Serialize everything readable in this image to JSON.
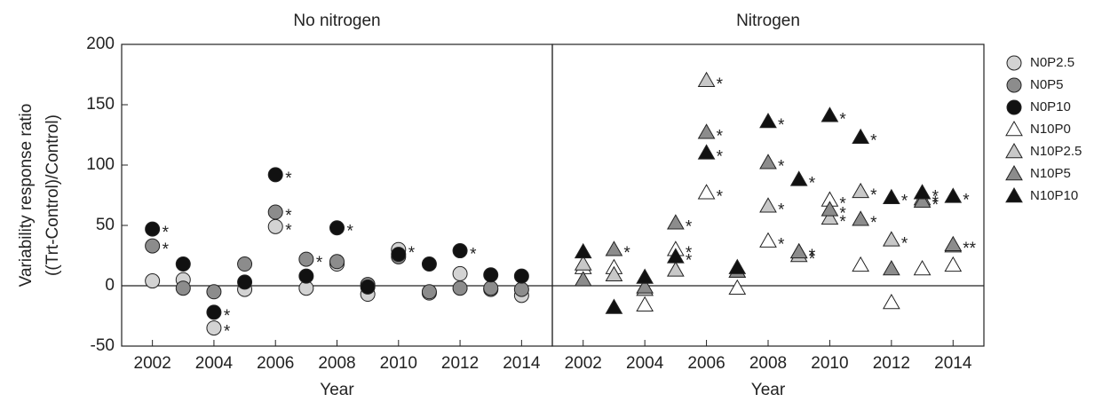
{
  "chart_data": [
    {
      "type": "scatter",
      "title": "No nitrogen",
      "xlabel": "Year",
      "ylabel": [
        "Variability response ratio",
        "((Trt-Control)/Control)"
      ],
      "x": [
        2002,
        2003,
        2004,
        2005,
        2006,
        2007,
        2008,
        2009,
        2010,
        2011,
        2012,
        2013,
        2014
      ],
      "xlim": [
        2001,
        2015
      ],
      "xticks": [
        2002,
        2004,
        2006,
        2008,
        2010,
        2012,
        2014
      ],
      "ylim": [
        -50,
        200
      ],
      "yticks": [
        -50,
        0,
        50,
        100,
        150,
        200
      ],
      "hline": 0,
      "series": [
        {
          "name": "N0P2.5",
          "marker": "circle",
          "color": "#d3d3d3",
          "values": [
            4,
            5,
            -35,
            -3,
            49,
            -2,
            18,
            -7,
            30,
            -6,
            10,
            -3,
            -8
          ],
          "labels": [
            null,
            null,
            "*",
            null,
            "*",
            null,
            null,
            null,
            "*",
            null,
            null,
            null,
            null
          ]
        },
        {
          "name": "N0P5",
          "marker": "circle",
          "color": "#8c8c8c",
          "values": [
            33,
            -2,
            -5,
            18,
            61,
            22,
            20,
            1,
            24,
            -5,
            -2,
            -2,
            -3
          ],
          "labels": [
            "*",
            null,
            null,
            null,
            "*",
            "*",
            null,
            null,
            null,
            null,
            null,
            null,
            null
          ]
        },
        {
          "name": "N0P10",
          "marker": "circle",
          "color": "#111111",
          "values": [
            47,
            18,
            -22,
            3,
            92,
            8,
            48,
            -1,
            26,
            18,
            29,
            9,
            8
          ],
          "labels": [
            "*",
            null,
            "*",
            null,
            "*",
            null,
            "*",
            null,
            null,
            null,
            "*",
            null,
            null
          ]
        }
      ]
    },
    {
      "type": "scatter",
      "title": "Nitrogen",
      "xlabel": "Year",
      "x": [
        2002,
        2003,
        2004,
        2005,
        2006,
        2007,
        2008,
        2009,
        2010,
        2011,
        2012,
        2013,
        2014
      ],
      "xlim": [
        2001,
        2015
      ],
      "xticks": [
        2002,
        2004,
        2006,
        2008,
        2010,
        2012,
        2014
      ],
      "ylim": [
        -50,
        200
      ],
      "hline": 0,
      "series": [
        {
          "name": "N10P0",
          "marker": "triangle",
          "color": "#ffffff",
          "values": [
            15,
            15,
            -16,
            30,
            77,
            -2,
            37,
            28,
            71,
            17,
            -14,
            14,
            17
          ],
          "labels": [
            null,
            null,
            null,
            "*",
            "*",
            null,
            "*",
            "*",
            "*",
            null,
            null,
            null,
            null
          ]
        },
        {
          "name": "N10P2.5",
          "marker": "triangle",
          "color": "#c8c8c8",
          "values": [
            18,
            9,
            -3,
            13,
            170,
            12,
            66,
            25,
            56,
            78,
            38,
            72,
            33
          ],
          "labels": [
            null,
            null,
            null,
            null,
            "*",
            null,
            "*",
            "*",
            "*",
            "*",
            "*",
            "*",
            null
          ]
        },
        {
          "name": "N10P5",
          "marker": "triangle",
          "color": "#8c8c8c",
          "values": [
            5,
            30,
            -1,
            52,
            127,
            12,
            102,
            28,
            63,
            55,
            14,
            70,
            34
          ],
          "labels": [
            null,
            "*",
            null,
            "*",
            "*",
            null,
            "*",
            "*",
            "*",
            "*",
            null,
            "*",
            "**"
          ]
        },
        {
          "name": "N10P10",
          "marker": "triangle",
          "color": "#111111",
          "values": [
            28,
            -18,
            7,
            24,
            110,
            15,
            136,
            88,
            141,
            123,
            73,
            77,
            74
          ],
          "labels": [
            null,
            null,
            null,
            "*",
            "*",
            null,
            "*",
            "*",
            "*",
            "*",
            "*",
            "*",
            "*"
          ]
        }
      ]
    }
  ]
}
